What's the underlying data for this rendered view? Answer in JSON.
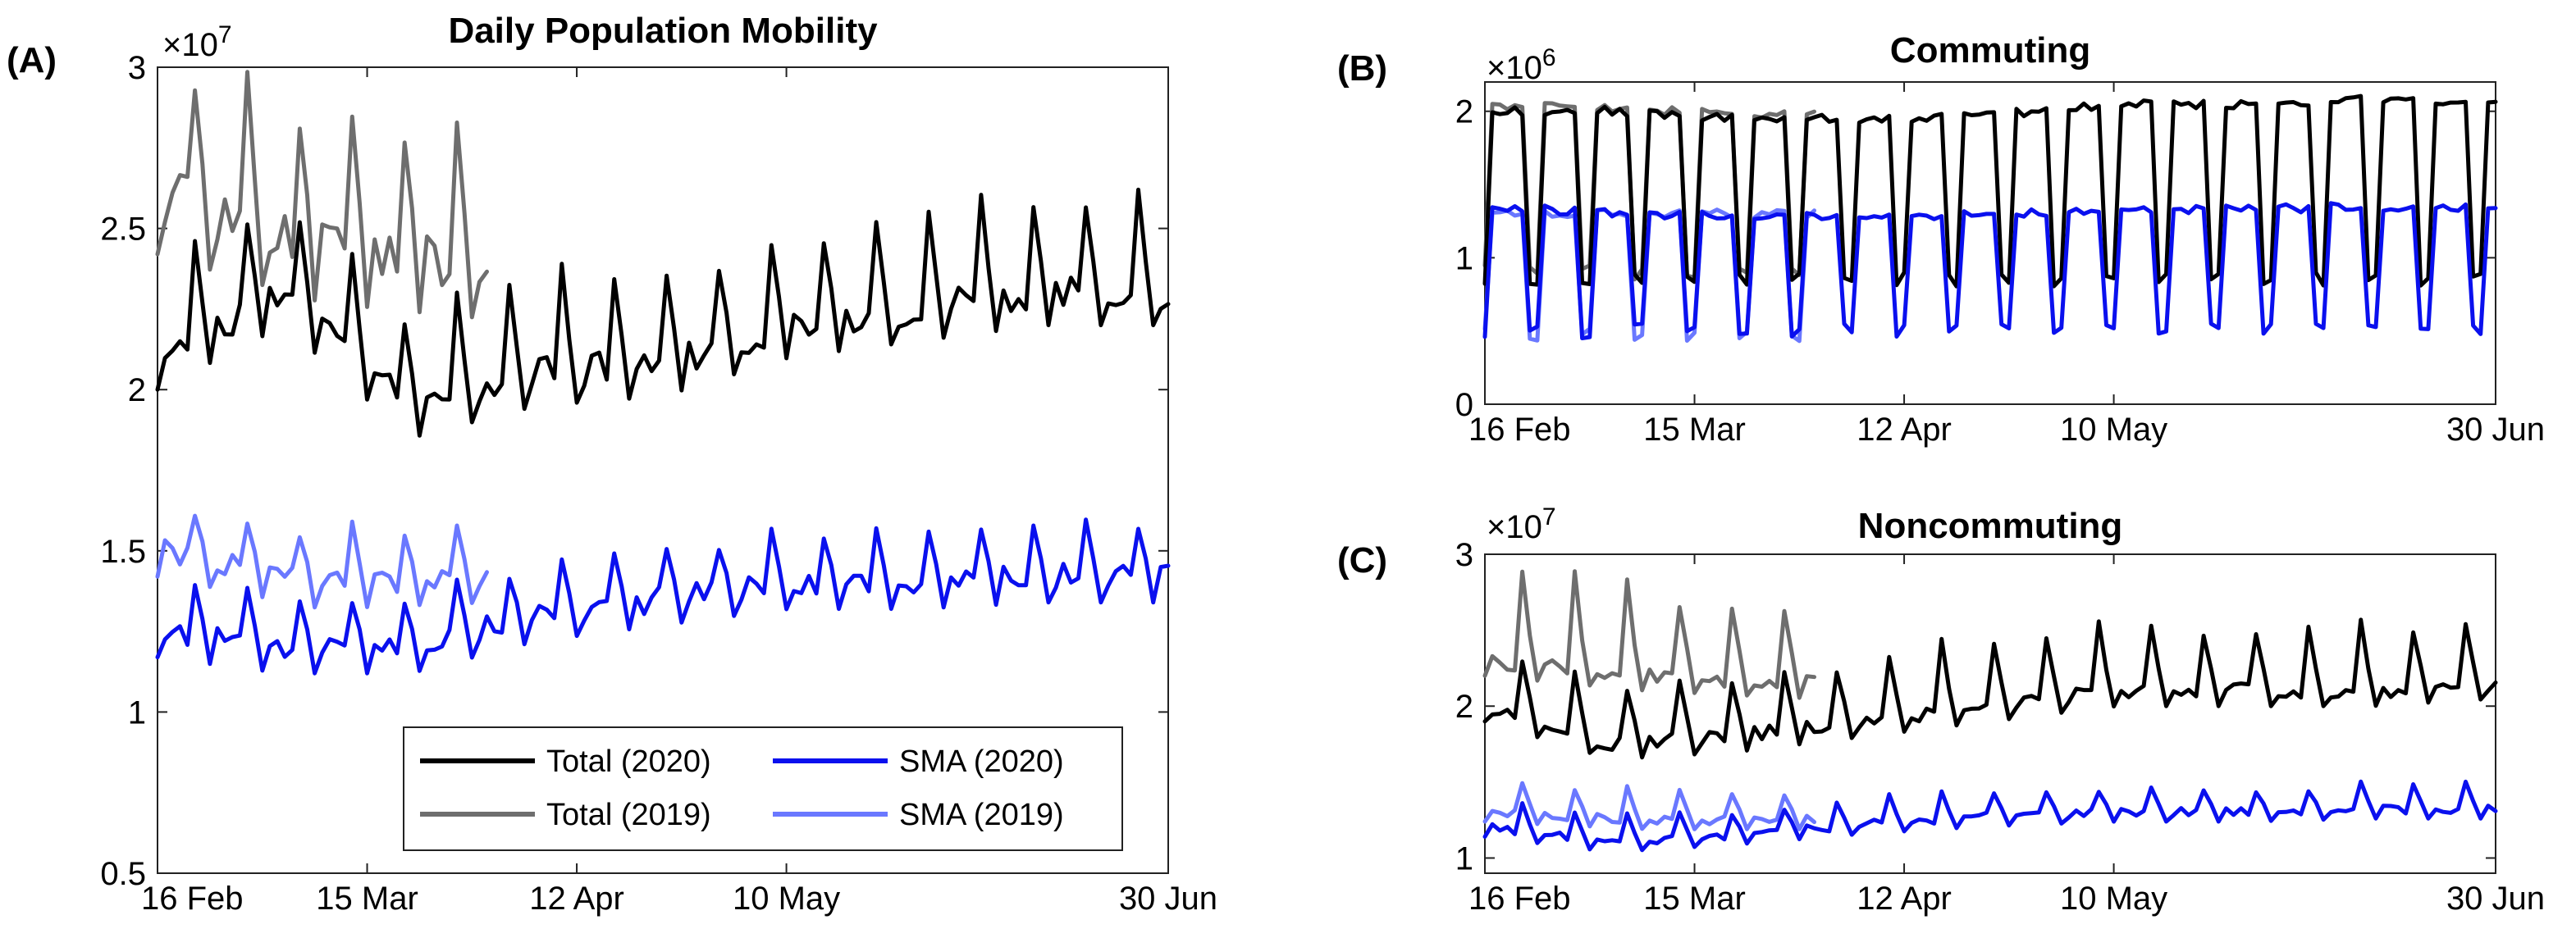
{
  "colors": {
    "total2020": "#000000",
    "total2019": "#6e6e6e",
    "sma2020": "#0a10ee",
    "sma2019": "#6a78ff"
  },
  "chart_data": [
    {
      "panel": "(A)",
      "type": "line",
      "title": "Daily Population Mobility",
      "exponent": "×10^7",
      "xlabel": "",
      "ylabel": "",
      "xlim": [
        "2020-02-16",
        "2020-06-30"
      ],
      "ylim": [
        0.5,
        3.0
      ],
      "xticks": [
        {
          "date": "2020-02-16",
          "label": "16 Feb"
        },
        {
          "date": "2020-03-15",
          "label": "15 Mar"
        },
        {
          "date": "2020-04-12",
          "label": "12 Apr"
        },
        {
          "date": "2020-05-10",
          "label": "10 May"
        },
        {
          "date": "2020-06-30",
          "label": "30 Jun"
        }
      ],
      "yticks": [
        {
          "value": 0.5,
          "label": "0.5"
        },
        {
          "value": 1.0,
          "label": "1"
        },
        {
          "value": 1.5,
          "label": "1.5"
        },
        {
          "value": 2.0,
          "label": "2"
        },
        {
          "value": 2.5,
          "label": "2.5"
        },
        {
          "value": 3.0,
          "label": "3"
        }
      ],
      "legend": {
        "position": "bottom-right",
        "entries": [
          {
            "label": "Total (2020)",
            "color_key": "total2020"
          },
          {
            "label": "SMA (2020)",
            "color_key": "sma2020"
          },
          {
            "label": "Total (2019)",
            "color_key": "total2019"
          },
          {
            "label": "SMA (2019)",
            "color_key": "sma2019"
          }
        ]
      },
      "series": [
        {
          "name": "Total (2020)",
          "color_key": "total2020",
          "x_start": "2020-02-16",
          "days": 136,
          "base": [
            2.1,
            2.3,
            1.95,
            2.05,
            2.08,
            2.2,
            2.25,
            2.3,
            2.3
          ],
          "peak": 0.28,
          "low": 0.1
        },
        {
          "name": "SMA (2020)",
          "color_key": "sma2020",
          "x_start": "2020-02-16",
          "days": 136,
          "base": [
            1.25,
            1.2,
            1.2,
            1.3,
            1.35,
            1.4,
            1.4,
            1.42,
            1.42
          ],
          "peak": 0.16,
          "low": 0.08
        },
        {
          "name": "Total (2019)",
          "color_key": "total2019",
          "x_start": "2020-02-16",
          "days": 45,
          "base": [
            2.6,
            2.45,
            2.4
          ],
          "peak": 0.4,
          "low": 0.18
        },
        {
          "name": "SMA (2019)",
          "color_key": "sma2019",
          "x_start": "2020-02-16",
          "days": 45,
          "base": [
            1.5,
            1.4,
            1.42
          ],
          "peak": 0.16,
          "low": 0.08
        }
      ]
    },
    {
      "panel": "(B)",
      "type": "line",
      "title": "Commuting",
      "exponent": "×10^6",
      "xlabel": "",
      "ylabel": "",
      "xlim": [
        "2020-02-16",
        "2020-06-30"
      ],
      "ylim": [
        0,
        2.2
      ],
      "xticks": [
        {
          "date": "2020-02-16",
          "label": "16 Feb"
        },
        {
          "date": "2020-03-15",
          "label": "15 Mar"
        },
        {
          "date": "2020-04-12",
          "label": "12 Apr"
        },
        {
          "date": "2020-05-10",
          "label": "10 May"
        },
        {
          "date": "2020-06-30",
          "label": "30 Jun"
        }
      ],
      "yticks": [
        {
          "value": 0,
          "label": "0"
        },
        {
          "value": 1,
          "label": "1"
        },
        {
          "value": 2,
          "label": "2"
        }
      ],
      "series": [
        {
          "name": "Total (2020)",
          "color_key": "total2020",
          "x_start": "2020-02-16",
          "days": 136,
          "work": [
            2.0,
            2.0,
            1.95,
            1.95,
            1.97,
            2.05,
            2.05,
            2.08,
            2.05
          ],
          "weekend": 0.85,
          "mode": "commute"
        },
        {
          "name": "SMA (2020)",
          "color_key": "sma2020",
          "x_start": "2020-02-16",
          "days": 136,
          "work": [
            1.35,
            1.3,
            1.28,
            1.28,
            1.3,
            1.33,
            1.33,
            1.35,
            1.33
          ],
          "weekend": 0.5,
          "mode": "commute"
        },
        {
          "name": "Total (2019)",
          "color_key": "total2019",
          "x_start": "2020-02-16",
          "days": 45,
          "work": [
            2.05,
            2.0,
            1.98
          ],
          "weekend": 0.9,
          "mode": "commute"
        },
        {
          "name": "SMA (2019)",
          "color_key": "sma2019",
          "x_start": "2020-02-16",
          "days": 45,
          "work": [
            1.3,
            1.3,
            1.3
          ],
          "weekend": 0.48,
          "mode": "commute"
        }
      ]
    },
    {
      "panel": "(C)",
      "type": "line",
      "title": "Noncommuting",
      "exponent": "×10^7",
      "xlabel": "",
      "ylabel": "",
      "xlim": [
        "2020-02-16",
        "2020-06-30"
      ],
      "ylim": [
        0.9,
        3.0
      ],
      "xticks": [
        {
          "date": "2020-02-16",
          "label": "16 Feb"
        },
        {
          "date": "2020-03-15",
          "label": "15 Mar"
        },
        {
          "date": "2020-04-12",
          "label": "12 Apr"
        },
        {
          "date": "2020-05-10",
          "label": "10 May"
        },
        {
          "date": "2020-06-30",
          "label": "30 Jun"
        }
      ],
      "yticks": [
        {
          "value": 1,
          "label": "1"
        },
        {
          "value": 2,
          "label": "2"
        },
        {
          "value": 3,
          "label": "3"
        }
      ],
      "series": [
        {
          "name": "Total (2020)",
          "color_key": "total2020",
          "x_start": "2020-02-16",
          "days": 136,
          "base": [
            2.0,
            1.75,
            1.8,
            1.9,
            2.0,
            2.1,
            2.1,
            2.1,
            2.15
          ],
          "peak": 0.42,
          "low": 0.1
        },
        {
          "name": "SMA (2020)",
          "color_key": "sma2020",
          "x_start": "2020-02-16",
          "days": 136,
          "base": [
            1.2,
            1.1,
            1.15,
            1.22,
            1.27,
            1.3,
            1.3,
            1.32,
            1.32
          ],
          "peak": 0.16,
          "low": 0.06
        },
        {
          "name": "Total (2019)",
          "color_key": "total2019",
          "x_start": "2020-02-16",
          "days": 45,
          "base": [
            2.3,
            2.2,
            2.15
          ],
          "peak": 0.55,
          "low": 0.1
        },
        {
          "name": "SMA (2019)",
          "color_key": "sma2019",
          "x_start": "2020-02-16",
          "days": 45,
          "base": [
            1.3,
            1.25,
            1.25
          ],
          "peak": 0.2,
          "low": 0.06
        }
      ]
    }
  ]
}
